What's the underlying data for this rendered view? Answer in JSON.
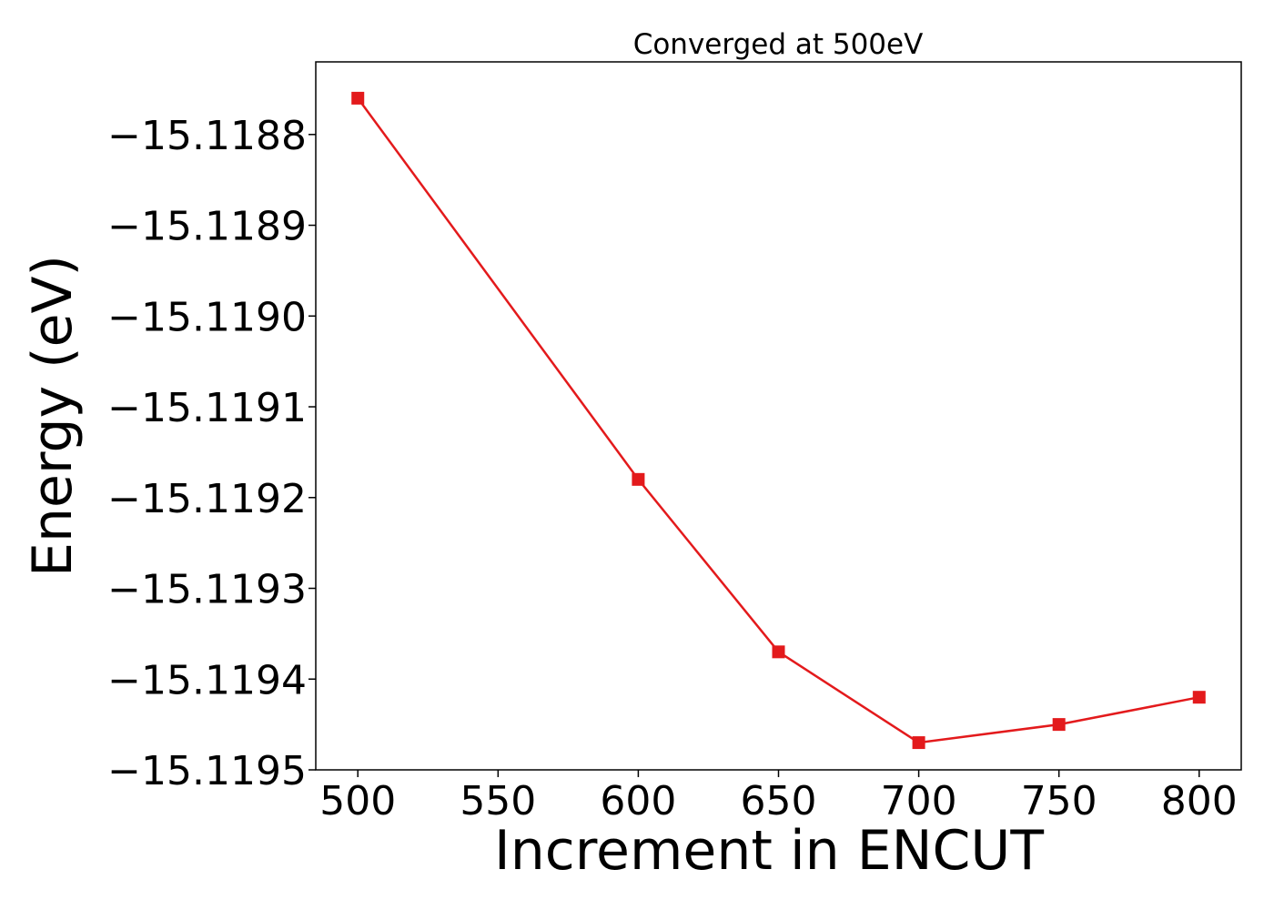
{
  "chart_data": {
    "type": "line",
    "title": "Converged at 500eV",
    "xlabel": "Increment in ENCUT",
    "ylabel": "Energy (eV)",
    "x": [
      500,
      600,
      650,
      700,
      750,
      800
    ],
    "series": [
      {
        "values": [
          -15.11876,
          -15.11918,
          -15.11937,
          -15.11947,
          -15.11945,
          -15.11942
        ],
        "color": "#e31a1c",
        "marker": "square"
      }
    ],
    "xlim": [
      485,
      815
    ],
    "ylim": [
      -15.1195,
      -15.11872
    ],
    "xticks": [
      500,
      550,
      600,
      650,
      700,
      750,
      800
    ],
    "xtick_labels": [
      "500",
      "550",
      "600",
      "650",
      "700",
      "750",
      "800"
    ],
    "yticks": [
      -15.1188,
      -15.1189,
      -15.119,
      -15.1191,
      -15.1192,
      -15.1193,
      -15.1194,
      -15.1195
    ],
    "ytick_labels": [
      "−15.1188",
      "−15.1189",
      "−15.1190",
      "−15.1191",
      "−15.1192",
      "−15.1193",
      "−15.1194",
      "−15.1195"
    ],
    "grid": false,
    "legend": "none"
  }
}
